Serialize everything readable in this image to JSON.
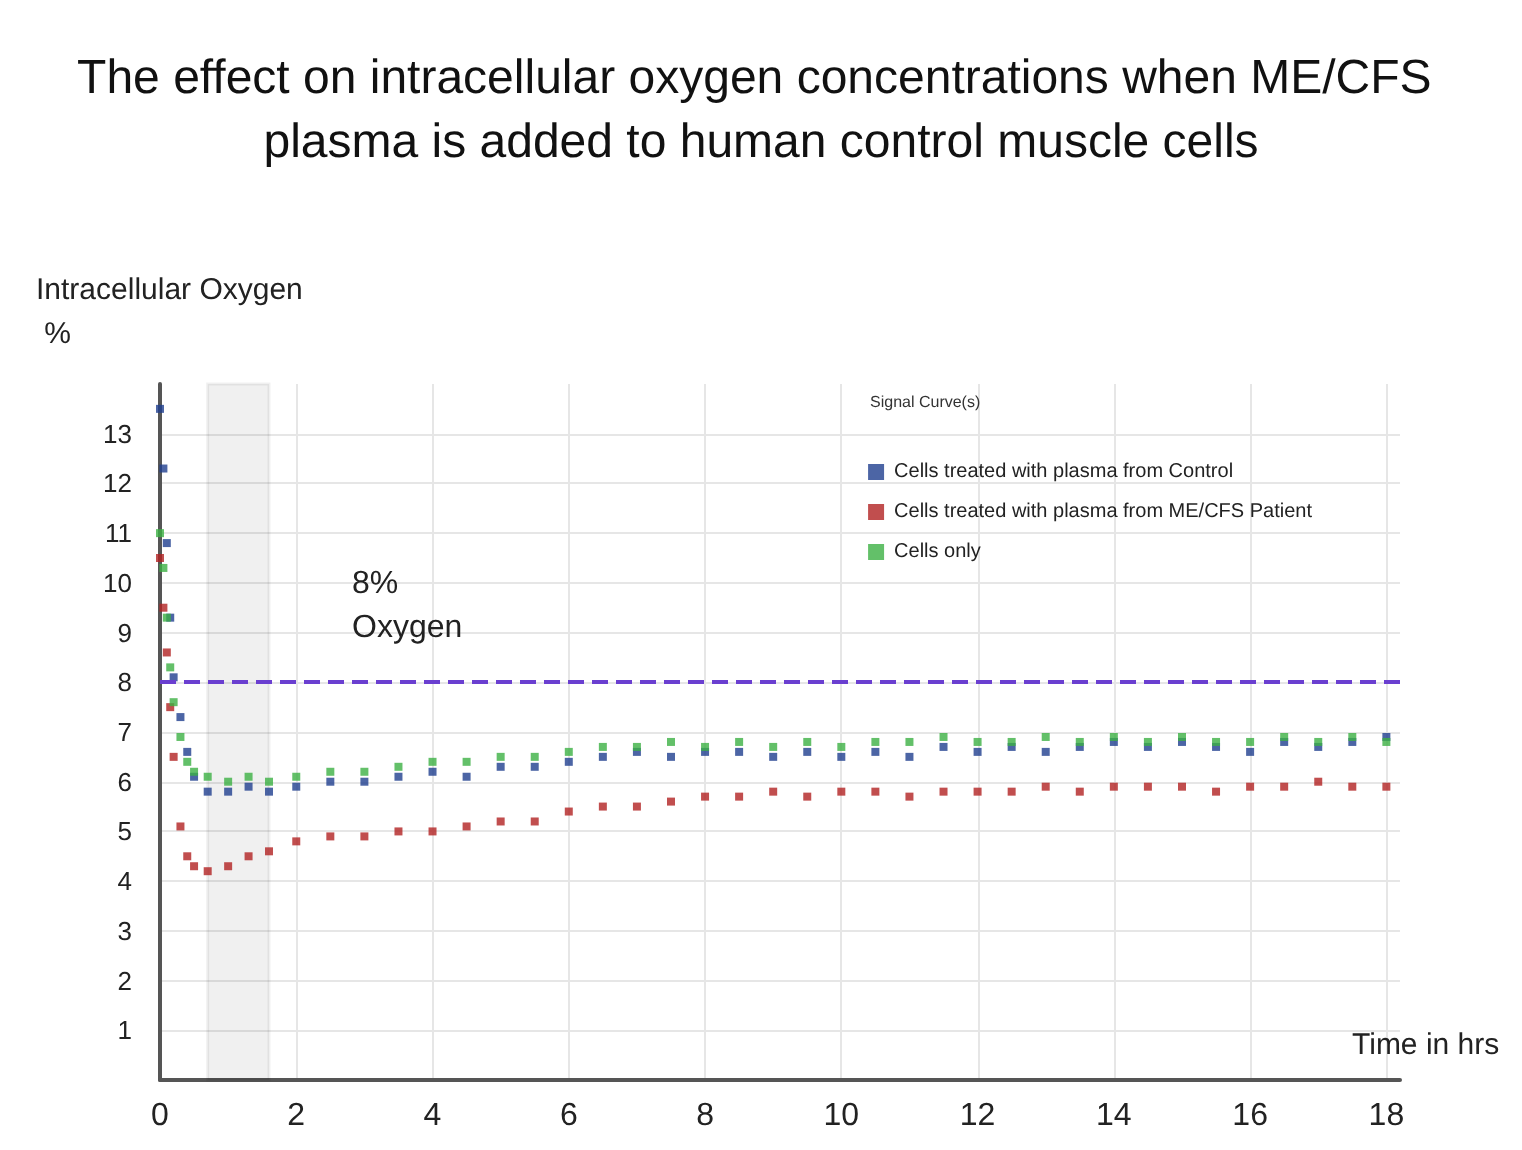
{
  "chart_data": {
    "type": "scatter",
    "title": "The effect on intracellular oxygen concentrations when ME/CFS plasma is added to human control muscle cells",
    "subtitle": "Signal Curve(s)",
    "xlabel": "Time in hrs",
    "ylabel": "Intracellular Oxygen %",
    "x": [
      0,
      0.05,
      0.1,
      0.15,
      0.2,
      0.3,
      0.4,
      0.5,
      0.7,
      1.0,
      1.3,
      1.6,
      2,
      2.5,
      3,
      3.5,
      4,
      4.5,
      5,
      5.5,
      6,
      6.5,
      7,
      7.5,
      8,
      8.5,
      9,
      9.5,
      10,
      10.5,
      11,
      11.5,
      12,
      12.5,
      13,
      13.5,
      14,
      14.5,
      15,
      15.5,
      16,
      16.5,
      17,
      17.5,
      18
    ],
    "series": [
      {
        "name": "Cells treated with plasma from Control",
        "color": "#1f3e8f",
        "values": [
          13.5,
          12.3,
          10.8,
          9.3,
          8.1,
          7.3,
          6.6,
          6.1,
          5.8,
          5.8,
          5.9,
          5.8,
          5.9,
          6.0,
          6.0,
          6.1,
          6.2,
          6.1,
          6.3,
          6.3,
          6.4,
          6.5,
          6.6,
          6.5,
          6.6,
          6.6,
          6.5,
          6.6,
          6.5,
          6.6,
          6.5,
          6.7,
          6.6,
          6.7,
          6.6,
          6.7,
          6.8,
          6.7,
          6.8,
          6.7,
          6.6,
          6.8,
          6.7,
          6.8,
          6.9
        ]
      },
      {
        "name": "Cells treated with plasma from ME/CFS Patient",
        "color": "#b22222",
        "values": [
          10.5,
          9.5,
          8.6,
          7.5,
          6.5,
          5.1,
          4.5,
          4.3,
          4.2,
          4.3,
          4.5,
          4.6,
          4.8,
          4.9,
          4.9,
          5.0,
          5.0,
          5.1,
          5.2,
          5.2,
          5.4,
          5.5,
          5.5,
          5.6,
          5.7,
          5.7,
          5.8,
          5.7,
          5.8,
          5.8,
          5.7,
          5.8,
          5.8,
          5.8,
          5.9,
          5.8,
          5.9,
          5.9,
          5.9,
          5.8,
          5.9,
          5.9,
          6.0,
          5.9,
          5.9
        ]
      },
      {
        "name": "Cells only",
        "color": "#3cb043",
        "values": [
          11.0,
          10.3,
          9.3,
          8.3,
          7.6,
          6.9,
          6.4,
          6.2,
          6.1,
          6.0,
          6.1,
          6.0,
          6.1,
          6.2,
          6.2,
          6.3,
          6.4,
          6.4,
          6.5,
          6.5,
          6.6,
          6.7,
          6.7,
          6.8,
          6.7,
          6.8,
          6.7,
          6.8,
          6.7,
          6.8,
          6.8,
          6.9,
          6.8,
          6.8,
          6.9,
          6.8,
          6.9,
          6.8,
          6.9,
          6.8,
          6.8,
          6.9,
          6.8,
          6.9,
          6.8
        ]
      }
    ],
    "xlim": [
      0,
      18.2
    ],
    "xticks": [
      0,
      2,
      4,
      6,
      8,
      10,
      12,
      14,
      16,
      18
    ],
    "ylim": [
      0,
      14
    ],
    "yticks": [
      1,
      2,
      3,
      4,
      5,
      6,
      7,
      8,
      9,
      10,
      11,
      12,
      13
    ],
    "ref_lines": [
      {
        "axis": "y",
        "value": 8,
        "label": "8% Oxygen",
        "color": "#6a3fd0",
        "line_style": "dashed"
      }
    ],
    "bands": [
      {
        "axis": "x",
        "from": 0.7,
        "to": 1.6,
        "color": "#000000"
      }
    ],
    "grid": true,
    "legend": "top right",
    "marker": "square"
  }
}
